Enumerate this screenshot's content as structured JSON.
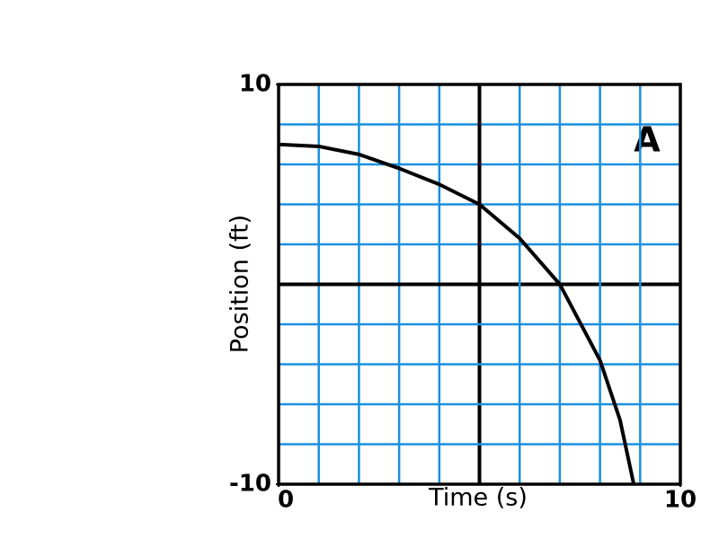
{
  "chart_data": {
    "type": "line",
    "x_label": "Time (s)",
    "y_label": "Position (ft)",
    "annotation": "A",
    "x": [
      0,
      1,
      2,
      3,
      4,
      5,
      6,
      7,
      8,
      8.5,
      8.84
    ],
    "series": [
      {
        "name": "A",
        "color": "#000000",
        "values": [
          7,
          6.9,
          6.5,
          5.8,
          5.0,
          4.0,
          2.3,
          0,
          -3.8,
          -6.8,
          -10
        ]
      }
    ],
    "xlim": [
      0,
      10
    ],
    "ylim": [
      -10,
      10
    ],
    "xticks": [
      0,
      10
    ],
    "yticks": [
      -10,
      10
    ],
    "grid": true,
    "grid_color": "#1a8fe0"
  }
}
